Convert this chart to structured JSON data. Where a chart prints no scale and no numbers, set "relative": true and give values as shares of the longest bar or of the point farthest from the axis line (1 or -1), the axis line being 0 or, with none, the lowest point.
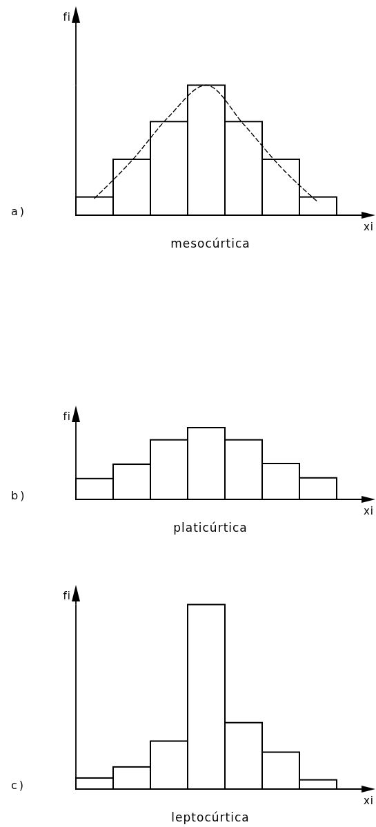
{
  "chart_data": [
    {
      "type": "bar",
      "categories": [
        null,
        null,
        null,
        null,
        null,
        null,
        null
      ],
      "relative": true,
      "color": "#ffffff",
      "values": [
        0.14,
        0.43,
        0.72,
        1,
        0.72,
        0.43,
        0.14
      ]
    },
    {
      "type": "line",
      "title": "mesocúrtica",
      "xlabel": "xi",
      "ylabel": "fi",
      "annotations": [
        "a)"
      ],
      "categories": [
        null,
        null,
        null,
        null,
        null,
        null,
        null
      ],
      "relative": true,
      "color": "#000000",
      "line_style": "dashed",
      "values": [
        0.13,
        0.42,
        0.76,
        1,
        0.7,
        0.37,
        0.1
      ]
    },
    {
      "type": "bar",
      "title": "platicúrtica",
      "xlabel": "xi",
      "ylabel": "fi",
      "annotations": [
        "b)"
      ],
      "categories": [
        null,
        null,
        null,
        null,
        null,
        null,
        null
      ],
      "relative": true,
      "series": [
        {
          "color": "#ffffff",
          "values": [
            0.29,
            0.49,
            0.83,
            1,
            0.83,
            0.5,
            0.3
          ]
        }
      ]
    },
    {
      "type": "bar",
      "title": "leptocúrtica",
      "xlabel": "xi",
      "ylabel": "fi",
      "annotations": [
        "c)"
      ],
      "categories": [
        null,
        null,
        null,
        null,
        null,
        null,
        null
      ],
      "relative": true,
      "series": [
        {
          "color": "#ffffff",
          "values": [
            0.06,
            0.12,
            0.26,
            1,
            0.36,
            0.2,
            0.05
          ]
        }
      ]
    }
  ]
}
